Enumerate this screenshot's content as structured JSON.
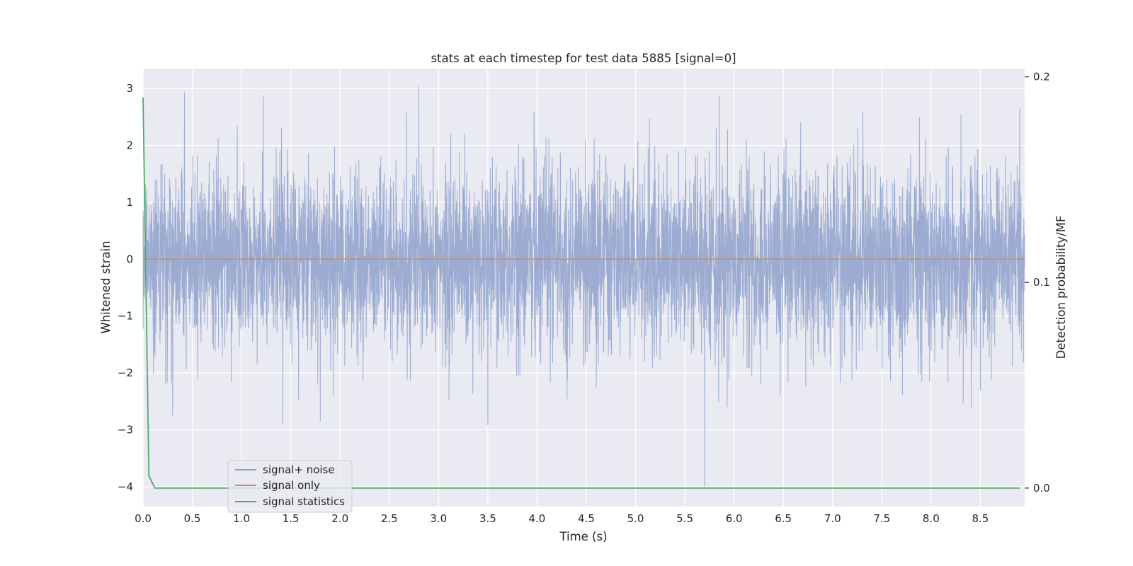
{
  "chart_data": {
    "type": "line",
    "title": "stats at each timestep for test data 5885 [signal=0]",
    "xlabel": "Time (s)",
    "ylabel": "Whitened strain",
    "y2label": "Detection probability/MF",
    "xlim": [
      0.0,
      8.95
    ],
    "ylim": [
      -4.35,
      3.35
    ],
    "y2lim": [
      -0.009,
      0.204
    ],
    "xticks": [
      0.0,
      0.5,
      1.0,
      1.5,
      2.0,
      2.5,
      3.0,
      3.5,
      4.0,
      4.5,
      5.0,
      5.5,
      6.0,
      6.5,
      7.0,
      7.5,
      8.0,
      8.5
    ],
    "xtick_labels": [
      "0.0",
      "0.5",
      "1.0",
      "1.5",
      "2.0",
      "2.5",
      "3.0",
      "3.5",
      "4.0",
      "4.5",
      "5.0",
      "5.5",
      "6.0",
      "6.5",
      "7.0",
      "7.5",
      "8.0",
      "8.5"
    ],
    "yticks": [
      -4,
      -3,
      -2,
      -1,
      0,
      1,
      2,
      3
    ],
    "ytick_labels": [
      "−4",
      "−3",
      "−2",
      "−1",
      "0",
      "1",
      "2",
      "3"
    ],
    "y2ticks": [
      0.0,
      0.1,
      0.2
    ],
    "y2tick_labels": [
      "0.0",
      "0.1",
      "0.2"
    ],
    "grid": true,
    "legend_position": "lower-left",
    "series": [
      {
        "name": "signal+ noise",
        "axis": "left",
        "color": "#8da0cb",
        "style": "dense noise, approx. Gaussian, std ~0.9",
        "duration": 8.95,
        "notable_peaks": [
          {
            "x": 0.42,
            "y": 2.93
          },
          {
            "x": 1.22,
            "y": 2.88
          },
          {
            "x": 2.8,
            "y": 3.04
          },
          {
            "x": 3.97,
            "y": 2.6
          },
          {
            "x": 5.85,
            "y": 2.87
          },
          {
            "x": 8.9,
            "y": 2.65
          },
          {
            "x": 0.3,
            "y": -2.75
          },
          {
            "x": 1.42,
            "y": -2.9
          },
          {
            "x": 1.8,
            "y": -2.85
          },
          {
            "x": 3.5,
            "y": -2.92
          },
          {
            "x": 5.7,
            "y": -4.0
          },
          {
            "x": 5.93,
            "y": -2.6
          }
        ]
      },
      {
        "name": "signal only",
        "axis": "left",
        "color": "#dd8452",
        "x": [
          0.0,
          8.95
        ],
        "y": [
          0.0,
          0.0
        ]
      },
      {
        "name": "signal statistics",
        "axis": "right",
        "color": "#55a868",
        "x": [
          0.0,
          0.06,
          0.12,
          8.9
        ],
        "y": [
          0.19,
          0.006,
          0.0,
          0.0
        ]
      }
    ]
  }
}
